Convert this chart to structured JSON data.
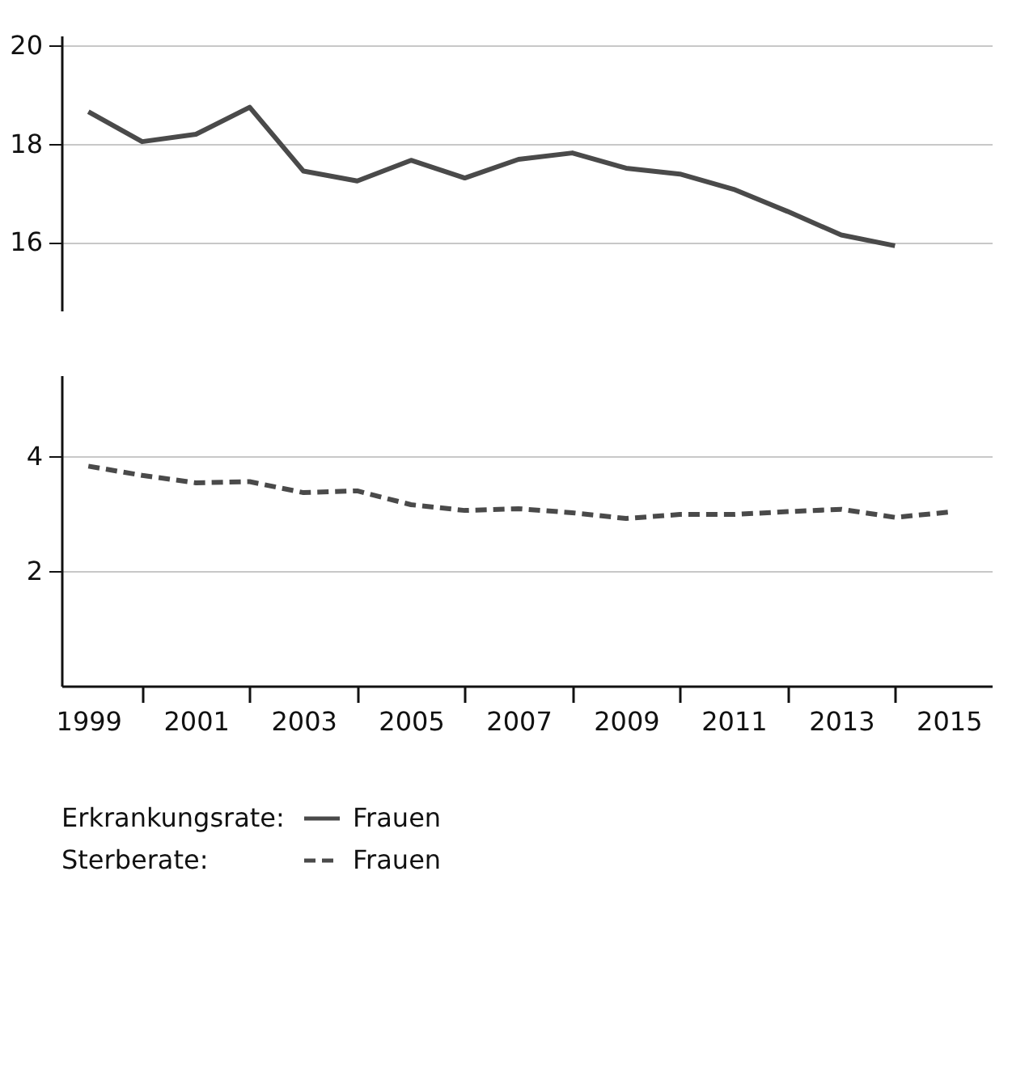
{
  "chart_data": [
    {
      "type": "line",
      "x": [
        1999,
        2000,
        2001,
        2002,
        2003,
        2004,
        2005,
        2006,
        2007,
        2008,
        2009,
        2010,
        2011,
        2012,
        2013,
        2014
      ],
      "xlim": [
        1998.5,
        2015.8
      ],
      "ylim": [
        14.6,
        20.2
      ],
      "yticks": [
        16,
        18,
        20
      ],
      "grid": "y",
      "tick_labels": "y",
      "legend": "bottom",
      "legend_title": "Erkrankungsrate:",
      "series": [
        {
          "name": "Frauen",
          "color": "#4a4a4a",
          "line_style": "solid",
          "values": [
            18.65,
            18.04,
            18.19,
            18.74,
            17.44,
            17.24,
            17.66,
            17.3,
            17.68,
            17.81,
            17.5,
            17.38,
            17.07,
            16.62,
            16.14,
            15.92
          ]
        }
      ]
    },
    {
      "type": "line",
      "x": [
        1999,
        2000,
        2001,
        2002,
        2003,
        2004,
        2005,
        2006,
        2007,
        2008,
        2009,
        2010,
        2011,
        2012,
        2013,
        2014,
        2015
      ],
      "xlim": [
        1998.5,
        2015.8
      ],
      "ylim": [
        0,
        5.4
      ],
      "yticks": [
        2,
        4
      ],
      "grid": "y",
      "legend": "bottom",
      "legend_title": "Sterberate:",
      "xticks": [
        1999,
        {
          "value": 2000,
          "label": null
        },
        2001,
        {
          "value": 2002,
          "label": null
        },
        2003,
        {
          "value": 2004,
          "label": null
        },
        2005,
        {
          "value": 2006,
          "label": null
        },
        2007,
        {
          "value": 2008,
          "label": null
        },
        2009,
        {
          "value": 2010,
          "label": null
        },
        2011,
        {
          "value": 2012,
          "label": null
        },
        2013,
        {
          "value": 2014,
          "label": null
        },
        2015
      ],
      "series": [
        {
          "name": "Frauen",
          "color": "#4a4a4a",
          "line_style": "dashed",
          "values": [
            3.82,
            3.66,
            3.53,
            3.55,
            3.36,
            3.39,
            3.15,
            3.05,
            3.08,
            3.01,
            2.91,
            2.98,
            2.98,
            3.03,
            3.07,
            2.93,
            3.02
          ]
        }
      ]
    }
  ]
}
